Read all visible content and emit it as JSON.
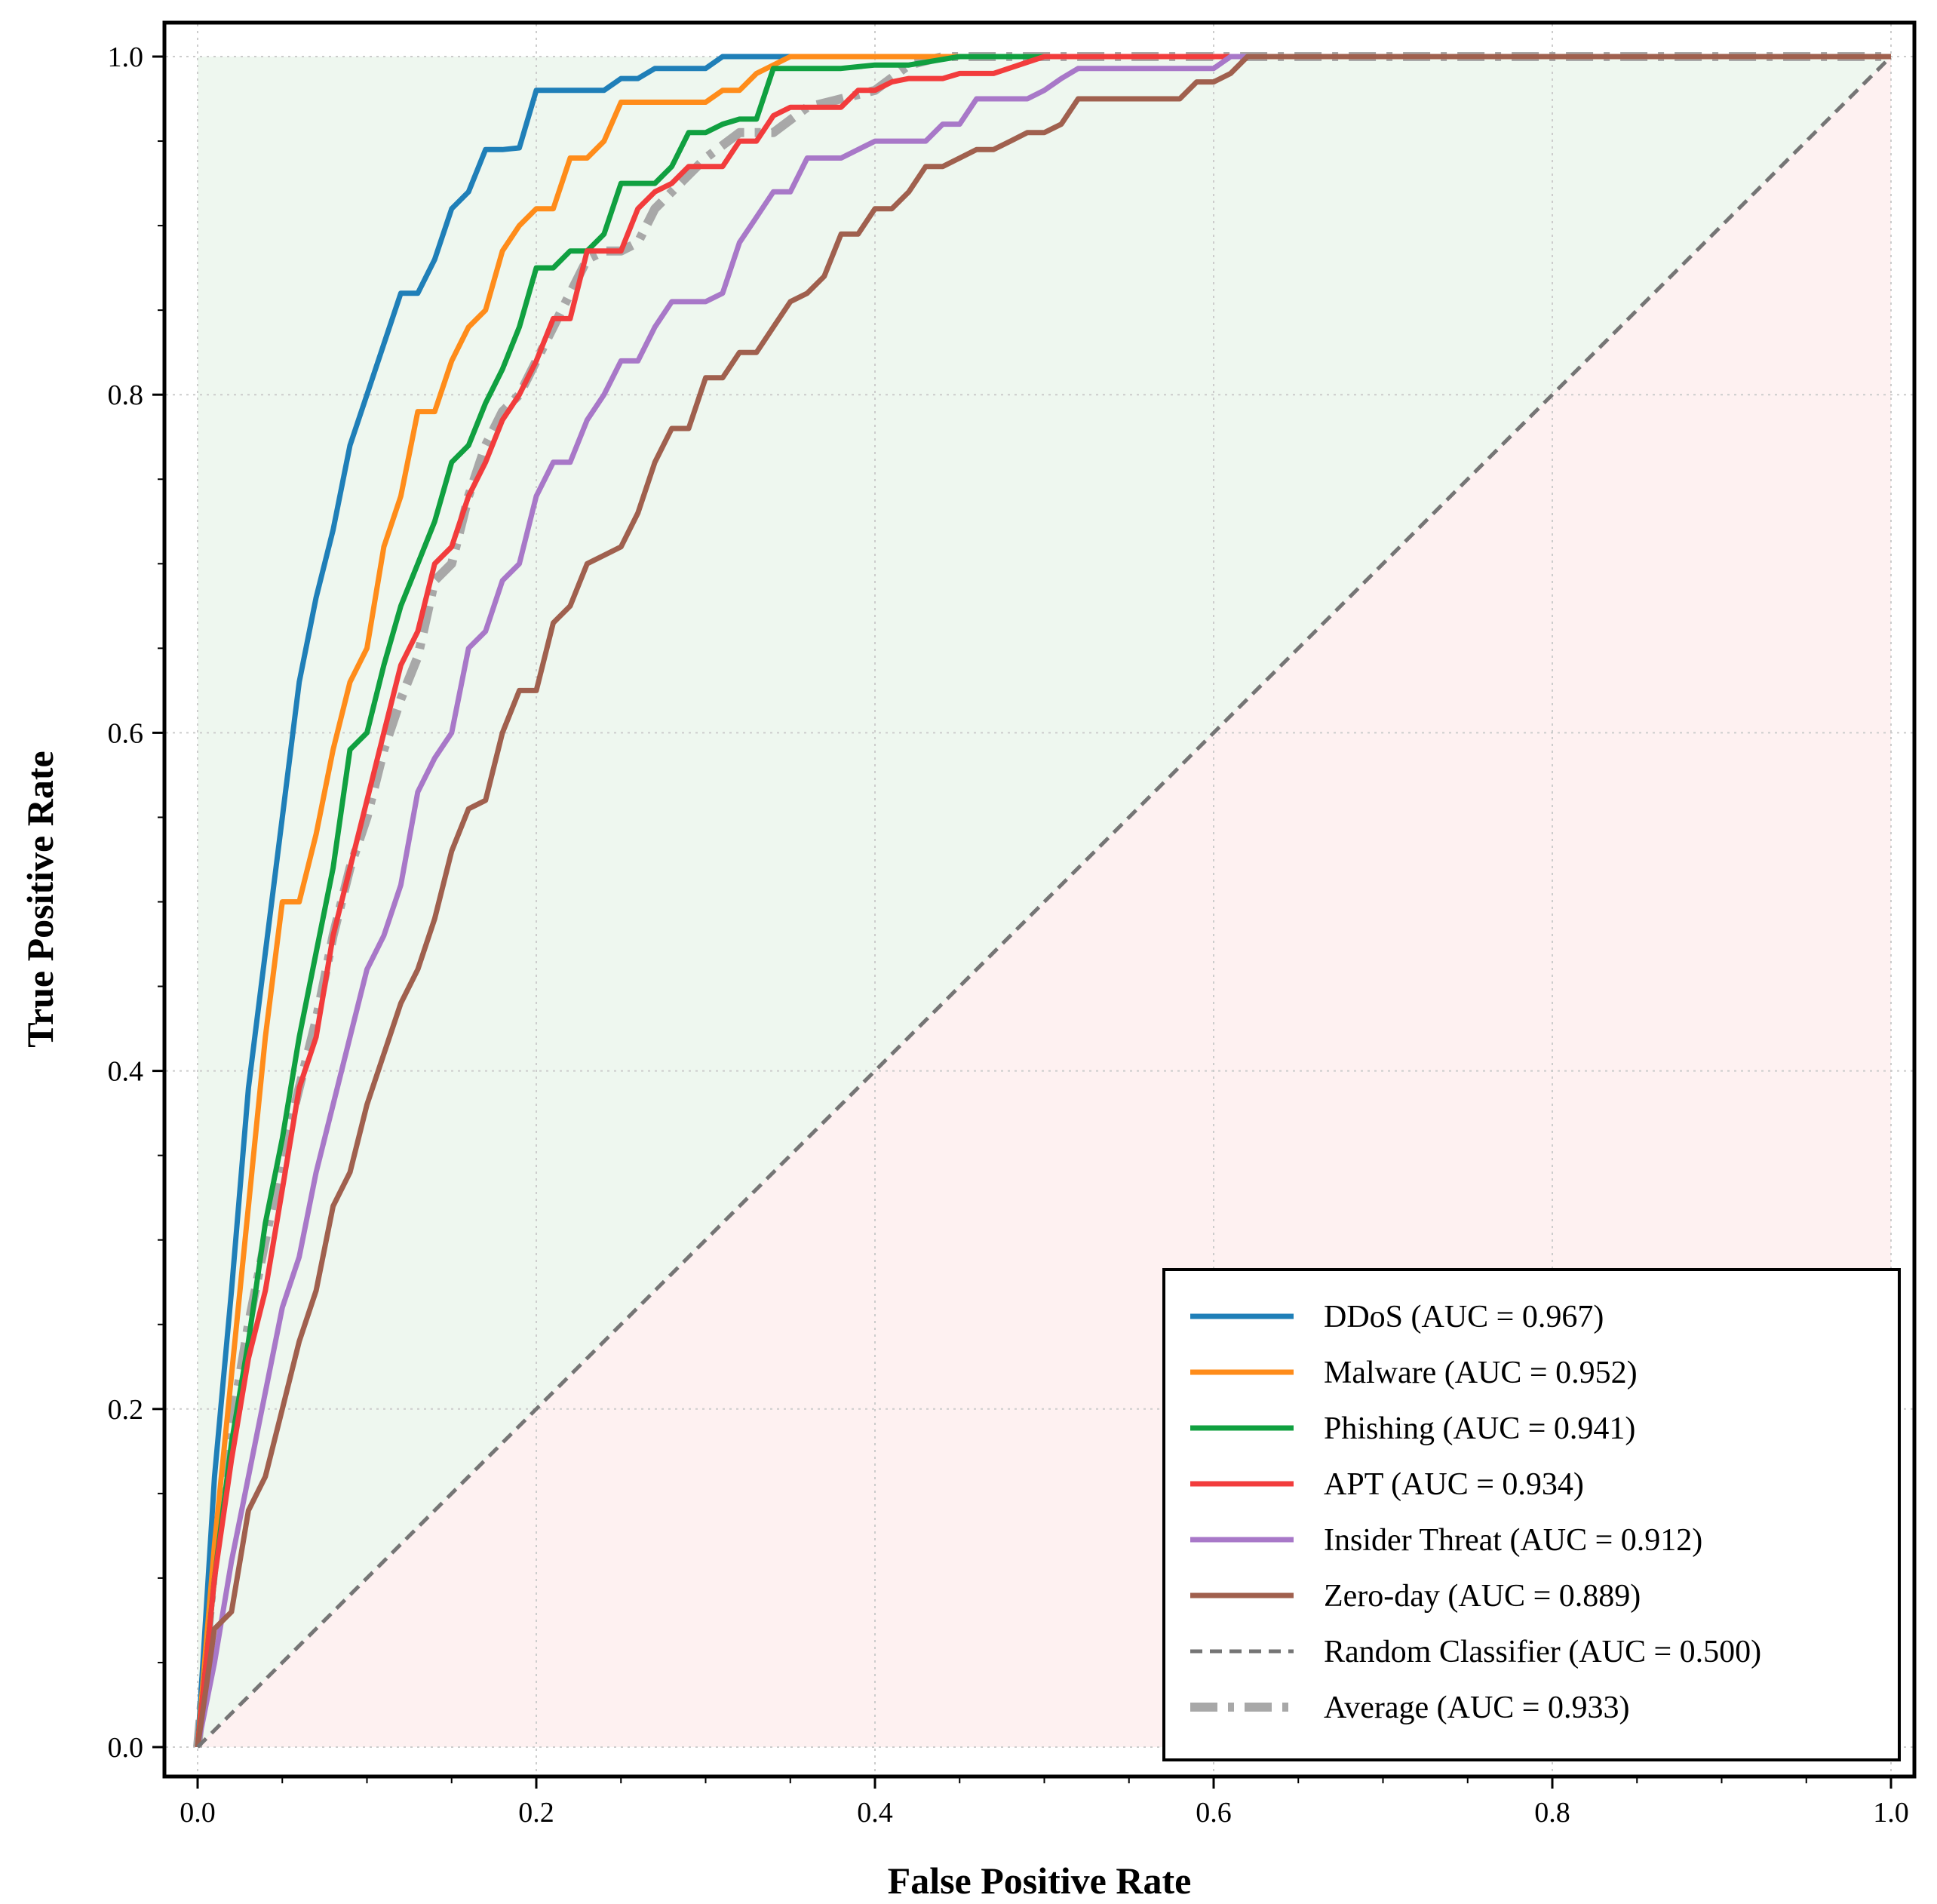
{
  "chart_data": {
    "type": "line",
    "title": "",
    "xlabel": "False Positive Rate",
    "ylabel": "True Positive Rate",
    "xlim": [
      0.0,
      1.0
    ],
    "ylim": [
      0.0,
      1.0
    ],
    "xticks": [
      "0.0",
      "0.2",
      "0.4",
      "0.6",
      "0.8",
      "1.0"
    ],
    "yticks": [
      "0.0",
      "0.2",
      "0.4",
      "0.6",
      "0.8",
      "1.0"
    ],
    "grid": true,
    "legend_position": "lower-right",
    "shaded_regions": [
      {
        "name": "above-diagonal",
        "color": "#e8f4ea"
      },
      {
        "name": "below-diagonal",
        "color": "#fdecec"
      }
    ],
    "series": [
      {
        "name": "DDoS (AUC = 0.967)",
        "color": "#1f7fb8",
        "style": "solid",
        "x": [
          0,
          0.01,
          0.02,
          0.03,
          0.04,
          0.05,
          0.06,
          0.07,
          0.08,
          0.09,
          0.1,
          0.11,
          0.12,
          0.13,
          0.14,
          0.15,
          0.16,
          0.17,
          0.18,
          0.19,
          0.2,
          0.22,
          0.24,
          0.25,
          0.26,
          0.27,
          0.28,
          0.3,
          0.31,
          0.32,
          0.35,
          1.0
        ],
        "y": [
          0,
          0.16,
          0.27,
          0.39,
          0.47,
          0.55,
          0.63,
          0.68,
          0.72,
          0.77,
          0.8,
          0.83,
          0.86,
          0.86,
          0.88,
          0.91,
          0.92,
          0.945,
          0.945,
          0.946,
          0.98,
          0.98,
          0.98,
          0.987,
          0.987,
          0.993,
          0.993,
          0.993,
          1.0,
          1.0,
          1.0,
          1.0
        ]
      },
      {
        "name": "Malware (AUC = 0.952)",
        "color": "#ff8c1a",
        "style": "solid",
        "x": [
          0,
          0.01,
          0.02,
          0.03,
          0.04,
          0.05,
          0.06,
          0.07,
          0.08,
          0.09,
          0.1,
          0.11,
          0.12,
          0.13,
          0.14,
          0.15,
          0.16,
          0.17,
          0.18,
          0.19,
          0.2,
          0.21,
          0.22,
          0.23,
          0.24,
          0.25,
          0.26,
          0.28,
          0.3,
          0.31,
          0.32,
          0.33,
          0.35,
          0.4,
          1.0
        ],
        "y": [
          0,
          0.12,
          0.22,
          0.32,
          0.42,
          0.5,
          0.5,
          0.54,
          0.59,
          0.63,
          0.65,
          0.71,
          0.74,
          0.79,
          0.79,
          0.82,
          0.84,
          0.85,
          0.885,
          0.9,
          0.91,
          0.91,
          0.94,
          0.94,
          0.95,
          0.973,
          0.973,
          0.973,
          0.973,
          0.98,
          0.98,
          0.99,
          1.0,
          1.0,
          1.0
        ]
      },
      {
        "name": "Phishing (AUC = 0.941)",
        "color": "#10a040",
        "style": "solid",
        "x": [
          0,
          0.01,
          0.02,
          0.03,
          0.04,
          0.05,
          0.06,
          0.07,
          0.08,
          0.09,
          0.1,
          0.11,
          0.12,
          0.13,
          0.14,
          0.15,
          0.16,
          0.17,
          0.18,
          0.19,
          0.2,
          0.21,
          0.22,
          0.23,
          0.24,
          0.25,
          0.26,
          0.27,
          0.28,
          0.29,
          0.3,
          0.31,
          0.32,
          0.33,
          0.34,
          0.35,
          0.38,
          0.4,
          0.42,
          0.45,
          1.0
        ],
        "y": [
          0,
          0.1,
          0.18,
          0.24,
          0.31,
          0.36,
          0.42,
          0.47,
          0.52,
          0.59,
          0.6,
          0.64,
          0.675,
          0.7,
          0.725,
          0.76,
          0.77,
          0.795,
          0.815,
          0.84,
          0.875,
          0.875,
          0.885,
          0.885,
          0.895,
          0.925,
          0.925,
          0.925,
          0.935,
          0.955,
          0.955,
          0.96,
          0.963,
          0.963,
          0.993,
          0.993,
          0.993,
          0.995,
          0.995,
          1.0,
          1.0
        ]
      },
      {
        "name": "APT (AUC = 0.934)",
        "color": "#f23c3c",
        "style": "solid",
        "x": [
          0,
          0.01,
          0.02,
          0.03,
          0.04,
          0.05,
          0.06,
          0.07,
          0.08,
          0.09,
          0.1,
          0.11,
          0.12,
          0.13,
          0.14,
          0.15,
          0.16,
          0.17,
          0.18,
          0.19,
          0.2,
          0.21,
          0.22,
          0.23,
          0.24,
          0.25,
          0.26,
          0.27,
          0.28,
          0.29,
          0.3,
          0.31,
          0.32,
          0.33,
          0.34,
          0.35,
          0.37,
          0.38,
          0.39,
          0.4,
          0.41,
          0.42,
          0.43,
          0.44,
          0.45,
          0.47,
          0.5,
          0.52,
          1.0
        ],
        "y": [
          0,
          0.1,
          0.17,
          0.23,
          0.27,
          0.33,
          0.39,
          0.42,
          0.48,
          0.52,
          0.56,
          0.6,
          0.64,
          0.66,
          0.7,
          0.71,
          0.74,
          0.76,
          0.785,
          0.8,
          0.82,
          0.845,
          0.845,
          0.885,
          0.885,
          0.885,
          0.91,
          0.92,
          0.925,
          0.935,
          0.935,
          0.935,
          0.95,
          0.95,
          0.965,
          0.97,
          0.97,
          0.97,
          0.98,
          0.98,
          0.985,
          0.987,
          0.987,
          0.987,
          0.99,
          0.99,
          1.0,
          1.0,
          1.0
        ]
      },
      {
        "name": "Insider Threat (AUC = 0.912)",
        "color": "#a878c8",
        "style": "solid",
        "x": [
          0,
          0.01,
          0.02,
          0.03,
          0.04,
          0.05,
          0.06,
          0.07,
          0.08,
          0.09,
          0.1,
          0.11,
          0.12,
          0.13,
          0.14,
          0.15,
          0.16,
          0.17,
          0.18,
          0.19,
          0.2,
          0.21,
          0.22,
          0.23,
          0.24,
          0.25,
          0.26,
          0.27,
          0.28,
          0.3,
          0.31,
          0.32,
          0.33,
          0.34,
          0.35,
          0.36,
          0.38,
          0.39,
          0.4,
          0.41,
          0.43,
          0.44,
          0.45,
          0.46,
          0.47,
          0.49,
          0.5,
          0.51,
          0.52,
          0.55,
          0.6,
          0.61,
          1.0
        ],
        "y": [
          0,
          0.05,
          0.11,
          0.16,
          0.21,
          0.26,
          0.29,
          0.34,
          0.38,
          0.42,
          0.46,
          0.48,
          0.51,
          0.565,
          0.585,
          0.6,
          0.65,
          0.66,
          0.69,
          0.7,
          0.74,
          0.76,
          0.76,
          0.785,
          0.8,
          0.82,
          0.82,
          0.84,
          0.855,
          0.855,
          0.86,
          0.89,
          0.905,
          0.92,
          0.92,
          0.94,
          0.94,
          0.945,
          0.95,
          0.95,
          0.95,
          0.96,
          0.96,
          0.975,
          0.975,
          0.975,
          0.98,
          0.987,
          0.993,
          0.993,
          0.993,
          1.0,
          1.0
        ]
      },
      {
        "name": "Zero-day (AUC = 0.889)",
        "color": "#a0604e",
        "style": "solid",
        "x": [
          0,
          0.01,
          0.02,
          0.03,
          0.04,
          0.05,
          0.06,
          0.07,
          0.08,
          0.09,
          0.1,
          0.11,
          0.12,
          0.13,
          0.14,
          0.15,
          0.16,
          0.17,
          0.18,
          0.19,
          0.2,
          0.21,
          0.22,
          0.23,
          0.24,
          0.25,
          0.26,
          0.27,
          0.28,
          0.29,
          0.3,
          0.31,
          0.32,
          0.33,
          0.34,
          0.35,
          0.36,
          0.37,
          0.38,
          0.39,
          0.4,
          0.41,
          0.42,
          0.43,
          0.44,
          0.45,
          0.46,
          0.47,
          0.48,
          0.49,
          0.5,
          0.51,
          0.52,
          0.55,
          0.58,
          0.59,
          0.6,
          0.61,
          0.62,
          1.0
        ],
        "y": [
          0,
          0.07,
          0.08,
          0.14,
          0.16,
          0.2,
          0.24,
          0.27,
          0.32,
          0.34,
          0.38,
          0.41,
          0.44,
          0.46,
          0.49,
          0.53,
          0.555,
          0.56,
          0.6,
          0.625,
          0.625,
          0.665,
          0.675,
          0.7,
          0.705,
          0.71,
          0.73,
          0.76,
          0.78,
          0.78,
          0.81,
          0.81,
          0.825,
          0.825,
          0.84,
          0.855,
          0.86,
          0.87,
          0.895,
          0.895,
          0.91,
          0.91,
          0.92,
          0.935,
          0.935,
          0.94,
          0.945,
          0.945,
          0.95,
          0.955,
          0.955,
          0.96,
          0.975,
          0.975,
          0.975,
          0.985,
          0.985,
          0.99,
          1.0,
          1.0
        ]
      },
      {
        "name": "Random Classifier (AUC = 0.500)",
        "color": "#757575",
        "style": "dashed",
        "x": [
          0,
          1.0
        ],
        "y": [
          0,
          1.0
        ]
      },
      {
        "name": "Average (AUC = 0.933)",
        "color": "#a8a8a8",
        "style": "dashdot",
        "x": [
          0,
          0.01,
          0.02,
          0.03,
          0.04,
          0.05,
          0.06,
          0.07,
          0.08,
          0.09,
          0.1,
          0.11,
          0.12,
          0.13,
          0.14,
          0.15,
          0.16,
          0.17,
          0.18,
          0.19,
          0.2,
          0.21,
          0.22,
          0.23,
          0.24,
          0.25,
          0.26,
          0.27,
          0.28,
          0.29,
          0.3,
          0.32,
          0.34,
          0.36,
          0.38,
          0.4,
          0.42,
          0.44,
          0.5,
          0.6,
          1.0
        ],
        "y": [
          0,
          0.11,
          0.19,
          0.25,
          0.3,
          0.35,
          0.39,
          0.43,
          0.48,
          0.52,
          0.55,
          0.59,
          0.62,
          0.645,
          0.69,
          0.7,
          0.74,
          0.77,
          0.79,
          0.8,
          0.82,
          0.84,
          0.86,
          0.88,
          0.885,
          0.885,
          0.89,
          0.91,
          0.92,
          0.93,
          0.94,
          0.955,
          0.955,
          0.97,
          0.975,
          0.98,
          0.995,
          1.0,
          1.0,
          1.0,
          1.0
        ]
      }
    ]
  }
}
